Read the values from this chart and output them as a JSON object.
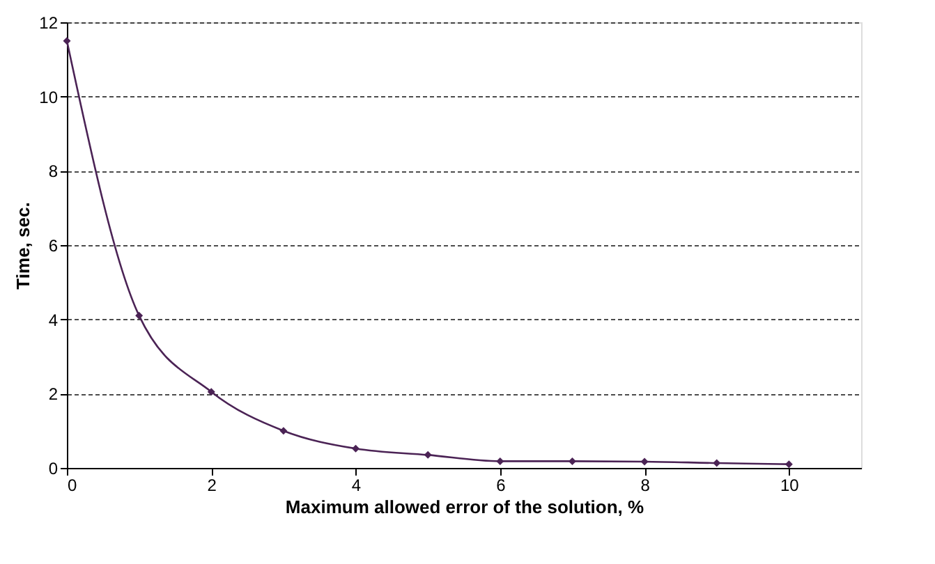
{
  "chart_data": {
    "type": "line",
    "xlabel": "Maximum allowed error of the solution, %",
    "ylabel": "Time, sec.",
    "x": [
      0,
      1,
      2,
      3,
      4,
      5,
      6,
      7,
      8,
      9,
      10
    ],
    "series": [
      {
        "color": "#4b2355",
        "values": [
          11.5,
          4.1,
          2.05,
          1.0,
          0.52,
          0.35,
          0.18,
          0.18,
          0.17,
          0.13,
          0.1
        ]
      }
    ],
    "xlim": [
      0,
      11
    ],
    "xticks": [
      0,
      2,
      4,
      6,
      8,
      10
    ],
    "ylim": [
      0,
      12
    ],
    "yticks": [
      0,
      2,
      4,
      6,
      8,
      10,
      12
    ],
    "grid": "y",
    "marker": "diamond",
    "line_style": "solid"
  }
}
